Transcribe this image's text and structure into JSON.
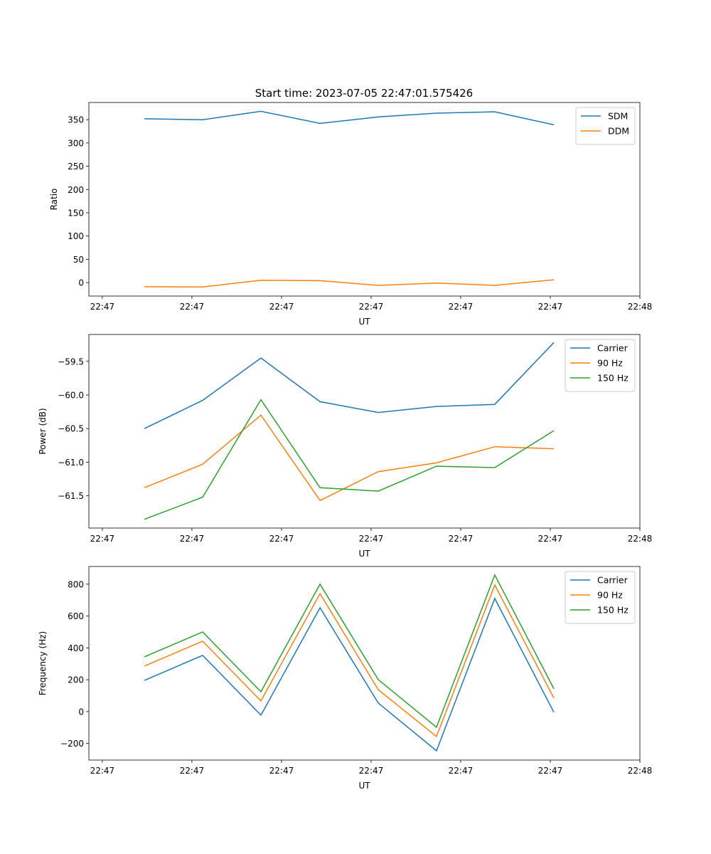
{
  "title": "Start time: 2023-07-05 22:47:01.575426",
  "colors": {
    "c0": "#1f77b4",
    "c1": "#ff7f0e",
    "c2": "#2ca02c"
  },
  "chart_data": [
    {
      "type": "line",
      "title": "Start time: 2023-07-05 22:47:01.575426",
      "xlabel": "UT",
      "ylabel": "Ratio",
      "x_unit": "seconds after 22:47:00",
      "x": [
        4.7,
        11.2,
        17.7,
        24.3,
        30.8,
        37.3,
        43.8,
        50.4
      ],
      "xlim": [
        -1.5,
        60.0
      ],
      "xticks": [
        0,
        10,
        20,
        30,
        40,
        50,
        60
      ],
      "xticklabels": [
        "22:47",
        "22:47",
        "22:47",
        "22:47",
        "22:47",
        "22:47",
        "22:48"
      ],
      "ylim": [
        -29,
        387
      ],
      "yticks": [
        0,
        50,
        100,
        150,
        200,
        250,
        300,
        350
      ],
      "yticklabels": [
        "0",
        "50",
        "100",
        "150",
        "200",
        "250",
        "300",
        "350"
      ],
      "legend": "top-right",
      "series": [
        {
          "name": "SDM",
          "color": "#1f77b4",
          "values": [
            352,
            350,
            368,
            342,
            356,
            364,
            367,
            339
          ]
        },
        {
          "name": "DDM",
          "color": "#ff7f0e",
          "values": [
            -9,
            -9.5,
            5,
            4,
            -6,
            -1,
            -6,
            6
          ]
        }
      ]
    },
    {
      "type": "line",
      "xlabel": "UT",
      "ylabel": "Power (dB)",
      "x_unit": "seconds after 22:47:00",
      "x": [
        4.7,
        11.2,
        17.7,
        24.3,
        30.8,
        37.3,
        43.8,
        50.4
      ],
      "xlim": [
        -1.5,
        60.0
      ],
      "xticks": [
        0,
        10,
        20,
        30,
        40,
        50,
        60
      ],
      "xticklabels": [
        "22:47",
        "22:47",
        "22:47",
        "22:47",
        "22:47",
        "22:47",
        "22:48"
      ],
      "ylim": [
        -61.98,
        -59.1
      ],
      "yticks": [
        -59.5,
        -60.0,
        -60.5,
        -61.0,
        -61.5
      ],
      "yticklabels": [
        "−59.5",
        "−60.0",
        "−60.5",
        "−61.0",
        "−61.5"
      ],
      "legend": "top-right",
      "series": [
        {
          "name": "Carrier",
          "color": "#1f77b4",
          "values": [
            -60.5,
            -60.08,
            -59.45,
            -60.1,
            -60.26,
            -60.17,
            -60.14,
            -59.22
          ]
        },
        {
          "name": "90 Hz",
          "color": "#ff7f0e",
          "values": [
            -61.38,
            -61.03,
            -60.3,
            -61.57,
            -61.14,
            -61.01,
            -60.77,
            -60.8
          ]
        },
        {
          "name": "150 Hz",
          "color": "#2ca02c",
          "values": [
            -61.85,
            -61.52,
            -60.07,
            -61.38,
            -61.43,
            -61.06,
            -61.08,
            -60.53
          ]
        }
      ]
    },
    {
      "type": "line",
      "xlabel": "UT",
      "ylabel": "Frequency (Hz)",
      "x_unit": "seconds after 22:47:00",
      "x": [
        4.7,
        11.2,
        17.7,
        24.3,
        30.8,
        37.3,
        43.8,
        50.4
      ],
      "xlim": [
        -1.5,
        60.0
      ],
      "xticks": [
        0,
        10,
        20,
        30,
        40,
        50,
        60
      ],
      "xticklabels": [
        "22:47",
        "22:47",
        "22:47",
        "22:47",
        "22:47",
        "22:47",
        "22:48"
      ],
      "ylim": [
        -304,
        911
      ],
      "yticks": [
        -200,
        0,
        200,
        400,
        600,
        800
      ],
      "yticklabels": [
        "−200",
        "0",
        "200",
        "400",
        "600",
        "800"
      ],
      "legend": "top-right",
      "series": [
        {
          "name": "Carrier",
          "color": "#1f77b4",
          "values": [
            196,
            353,
            -22,
            652,
            54,
            -246,
            710,
            -4
          ]
        },
        {
          "name": "90 Hz",
          "color": "#ff7f0e",
          "values": [
            286,
            442,
            67,
            741,
            138,
            -156,
            795,
            85
          ]
        },
        {
          "name": "150 Hz",
          "color": "#2ca02c",
          "values": [
            344,
            500,
            125,
            800,
            201,
            -98,
            858,
            143
          ]
        }
      ]
    }
  ]
}
